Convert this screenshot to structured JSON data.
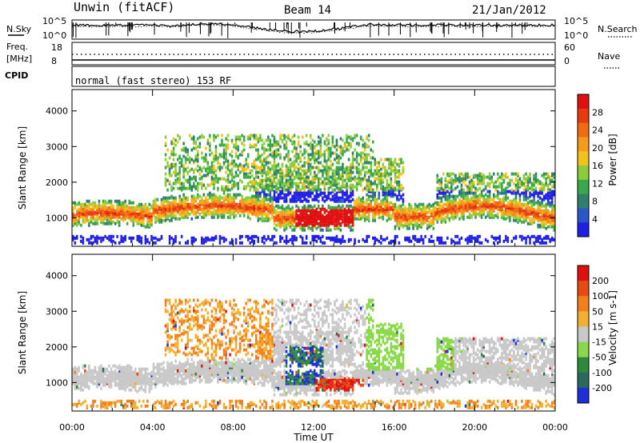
{
  "header": {
    "left": "Unwin (fitACF)",
    "center": "Beam 14",
    "right": "21/Jan/2012"
  },
  "noise_panel": {
    "left_label": "N.Sky",
    "right_label": "N.Search",
    "left_ticks": [
      "10^5",
      "10^0"
    ],
    "right_ticks": [
      "10^5",
      "10^0"
    ]
  },
  "freq_panel": {
    "left_label_1": "Freq.",
    "left_label_2": "[MHz]",
    "left_ticks": [
      "18",
      "8"
    ],
    "right_label": "Nave",
    "right_ticks": [
      "60",
      "0"
    ],
    "cpid_label": "CPID"
  },
  "cpid_panel": {
    "text": "normal (fast stereo) 153 RF"
  },
  "chart_data": [
    {
      "type": "heatmap",
      "ylabel": "Slant Range [km]",
      "ylim": [
        200,
        4600
      ],
      "yticks": [
        "4000",
        "3000",
        "2000",
        "1000"
      ],
      "xlim": [
        "00:00",
        "24:00"
      ],
      "colorbar": {
        "label": "Power [dB]",
        "ticks": [
          "28",
          "24",
          "20",
          "16",
          "12",
          "8",
          "4"
        ],
        "colors": [
          "#1f1fe6",
          "#2a56c8",
          "#2f7f6e",
          "#3aa84a",
          "#8ccc3c",
          "#f2c21c",
          "#f59a1a",
          "#f26a12",
          "#e83a10",
          "#e01010"
        ]
      }
    },
    {
      "type": "heatmap",
      "ylabel": "Velocity [m s-1]",
      "ylabel_axis": "Slant Range [km]",
      "ylim": [
        200,
        4600
      ],
      "yticks": [
        "4000",
        "3000",
        "2000",
        "1000"
      ],
      "xlim": [
        "00:00",
        "24:00"
      ],
      "colorbar": {
        "label": "Velocity [m s-1]",
        "ticks": [
          "200",
          "100",
          "50",
          "15",
          "-15",
          "-50",
          "-100",
          "-200"
        ],
        "colors": [
          "#1f2fd8",
          "#2a6a5a",
          "#2e8a3a",
          "#88d84a",
          "#c8c8c8",
          "#f2b030",
          "#f2801a",
          "#e84a14",
          "#e01010"
        ]
      }
    }
  ],
  "time_axis": {
    "label": "Time UT",
    "ticks": [
      "00:00",
      "04:00",
      "08:00",
      "12:00",
      "16:00",
      "20:00",
      "00:00"
    ]
  }
}
